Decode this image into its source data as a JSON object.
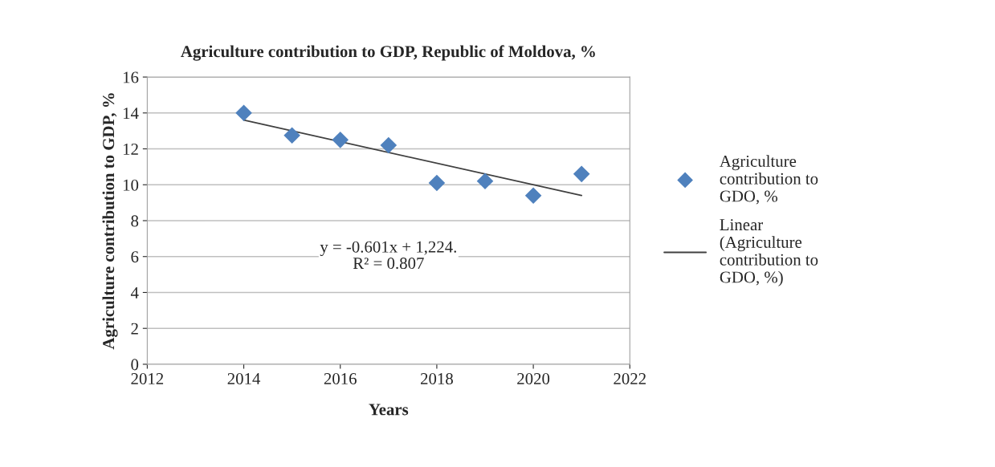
{
  "chart_data": {
    "type": "scatter",
    "title": "Agriculture contribution to GDP, Republic of Moldova, %",
    "xlabel": "Years",
    "ylabel": "Agriculture contribution to GDP, %",
    "x": [
      2014,
      2015,
      2016,
      2017,
      2018,
      2019,
      2020,
      2021
    ],
    "series": [
      {
        "name": "Agriculture contribution to GDO, %",
        "color": "#4f81bd",
        "marker": "diamond",
        "values": [
          14.0,
          12.75,
          12.5,
          12.2,
          10.1,
          10.2,
          9.4,
          10.6
        ]
      },
      {
        "type": "line",
        "name": "Linear (Agriculture contribution to GDO, %)",
        "color": "#404040",
        "x": [
          2014,
          2021
        ],
        "values": [
          13.6,
          9.4
        ]
      }
    ],
    "annotations": [
      "y = -0.601x + 1,224.\nR² = 0.807"
    ],
    "xlim": [
      2012,
      2022
    ],
    "xticks": [
      2012,
      2014,
      2016,
      2018,
      2020,
      2022
    ],
    "ylim": [
      0,
      16
    ],
    "yticks": [
      0,
      2,
      4,
      6,
      8,
      10,
      12,
      14,
      16
    ],
    "grid": "y",
    "legend": "right"
  }
}
